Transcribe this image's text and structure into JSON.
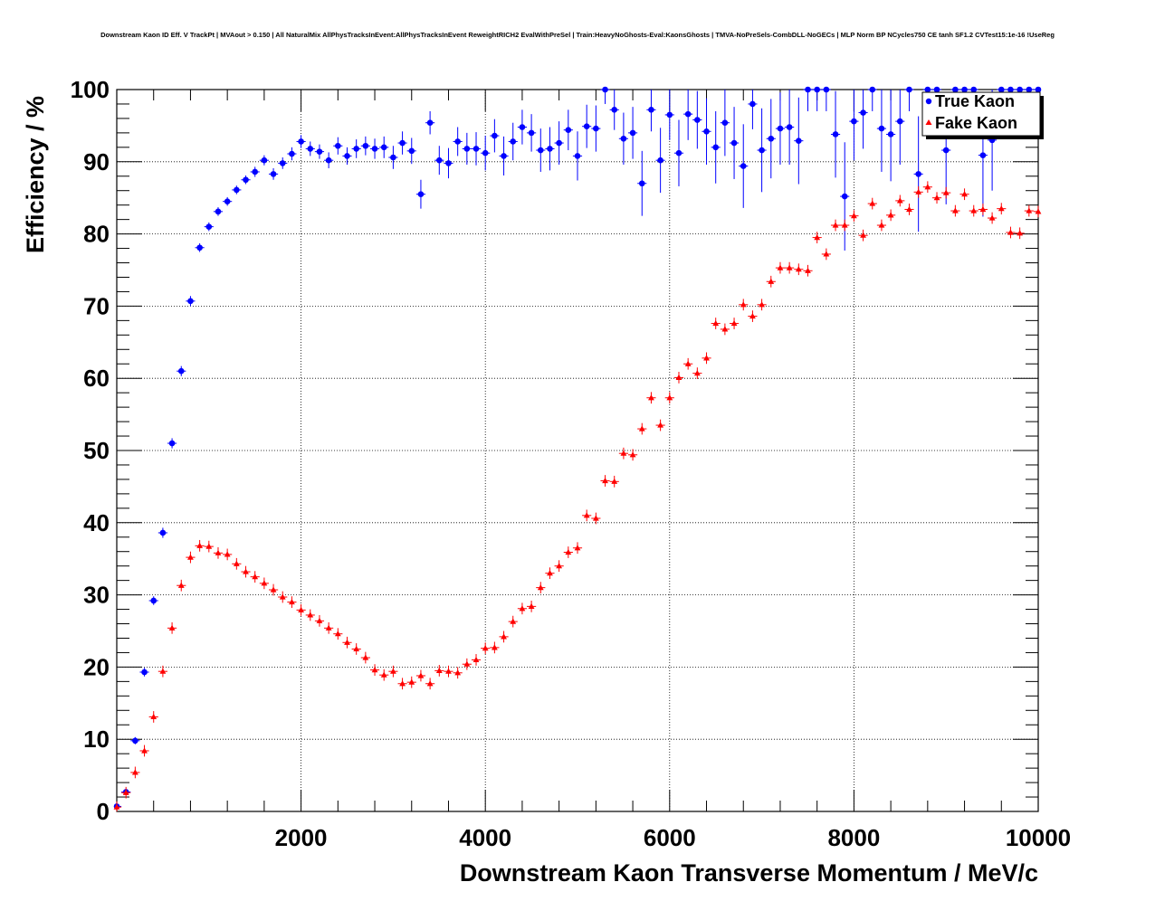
{
  "chart_data": {
    "type": "scatter",
    "title": "Downstream Kaon ID Eff. V TrackPt | MVAout > 0.150 | All NaturalMix AllPhysTracksInEvent:AllPhysTracksInEvent ReweightRICH2 EvalWithPreSel | Train:HeavyNoGhosts-Eval:KaonsGhosts | TMVA-NoPreSels-CombDLL-NoGECs | MLP Norm BP NCycles750 CE tanh SF1.2 CVTest15:1e-16 !UseReg",
    "xlabel": "Downstream Kaon Transverse Momentum / MeV/c",
    "ylabel": "Efficiency / %",
    "xlim": [
      0,
      10000
    ],
    "ylim": [
      0,
      100
    ],
    "x_tick_labels": [
      "2000",
      "4000",
      "6000",
      "8000",
      "10000"
    ],
    "y_tick_labels": [
      "0",
      "10",
      "20",
      "30",
      "40",
      "50",
      "60",
      "70",
      "80",
      "90",
      "100"
    ],
    "grid": true,
    "legend_position": "top-right",
    "series": [
      {
        "name": "True Kaon",
        "color": "#0000ff",
        "marker": "circle",
        "x": [
          0,
          100,
          200,
          300,
          400,
          500,
          600,
          700,
          800,
          900,
          1000,
          1100,
          1200,
          1300,
          1400,
          1500,
          1600,
          1700,
          1800,
          1900,
          2000,
          2100,
          2200,
          2300,
          2400,
          2500,
          2600,
          2700,
          2800,
          2900,
          3000,
          3100,
          3200,
          3300,
          3400,
          3500,
          3600,
          3700,
          3800,
          3900,
          4000,
          4100,
          4200,
          4300,
          4400,
          4500,
          4600,
          4700,
          4800,
          4900,
          5000,
          5100,
          5200,
          5300,
          5400,
          5500,
          5600,
          5700,
          5800,
          5900,
          6000,
          6100,
          6200,
          6300,
          6400,
          6500,
          6600,
          6700,
          6800,
          6900,
          7000,
          7100,
          7200,
          7300,
          7400,
          7500,
          7600,
          7700,
          7800,
          7900,
          8000,
          8100,
          8200,
          8300,
          8400,
          8500,
          8600,
          8700,
          8800,
          8900,
          9000,
          9100,
          9200,
          9300,
          9400,
          9500,
          9600,
          9700,
          9800,
          9900,
          10000
        ],
        "y": [
          0.7,
          2.7,
          9.8,
          19.3,
          29.2,
          38.6,
          51.0,
          61.0,
          70.7,
          78.1,
          81.0,
          83.1,
          84.5,
          86.1,
          87.5,
          88.6,
          90.2,
          88.3,
          89.8,
          91.1,
          92.8,
          91.8,
          91.4,
          90.2,
          92.2,
          90.8,
          91.8,
          92.2,
          91.8,
          92.0,
          90.6,
          92.6,
          91.5,
          85.5,
          95.4,
          90.2,
          89.8,
          92.8,
          91.8,
          91.8,
          91.2,
          93.6,
          90.8,
          92.8,
          94.8,
          94.0,
          91.6,
          91.8,
          92.6,
          94.4,
          90.8,
          94.9,
          94.6,
          100,
          97.2,
          93.2,
          94.0,
          87.0,
          97.2,
          90.2,
          96.5,
          91.2,
          96.6,
          95.8,
          94.2,
          92.0,
          95.4,
          92.6,
          89.4,
          98.0,
          91.6,
          93.2,
          94.6,
          94.8,
          92.9,
          100,
          100,
          100,
          93.8,
          85.2,
          95.6,
          96.8,
          100,
          94.6,
          93.8,
          95.6,
          100,
          88.3,
          100,
          100,
          91.6,
          100,
          100,
          100,
          90.9,
          93.0,
          100,
          100,
          100,
          100,
          100
        ],
        "err": [
          0.3,
          0.4,
          0.5,
          0.6,
          0.6,
          0.7,
          0.7,
          0.7,
          0.7,
          0.6,
          0.6,
          0.6,
          0.6,
          0.6,
          0.6,
          0.7,
          0.7,
          0.8,
          0.8,
          0.9,
          0.9,
          1.0,
          1.0,
          1.1,
          1.2,
          1.2,
          1.3,
          1.3,
          1.4,
          1.5,
          1.6,
          1.6,
          1.8,
          2.0,
          1.6,
          2.0,
          2.1,
          2.0,
          2.2,
          2.3,
          2.4,
          2.3,
          2.7,
          2.6,
          2.4,
          2.6,
          3.0,
          3.0,
          3.0,
          2.8,
          3.4,
          3.0,
          3.2,
          2.0,
          2.8,
          3.6,
          3.6,
          4.5,
          3.0,
          4.5,
          3.5,
          4.6,
          3.6,
          4.0,
          4.6,
          5.0,
          4.6,
          5.0,
          5.8,
          3.5,
          5.8,
          5.5,
          5.0,
          5.2,
          6.0,
          3.0,
          3.0,
          3.0,
          6.0,
          7.5,
          5.4,
          5.0,
          3.0,
          6.0,
          6.5,
          6.0,
          3.0,
          8.0,
          3.0,
          3.0,
          7.5,
          3.0,
          3.0,
          3.0,
          8.5,
          7.0,
          3.0,
          3.0,
          3.0,
          3.0,
          3.0
        ]
      },
      {
        "name": "Fake Kaon",
        "color": "#ff0000",
        "marker": "triangle",
        "x": [
          0,
          100,
          200,
          300,
          400,
          500,
          600,
          700,
          800,
          900,
          1000,
          1100,
          1200,
          1300,
          1400,
          1500,
          1600,
          1700,
          1800,
          1900,
          2000,
          2100,
          2200,
          2300,
          2400,
          2500,
          2600,
          2700,
          2800,
          2900,
          3000,
          3100,
          3200,
          3300,
          3400,
          3500,
          3600,
          3700,
          3800,
          3900,
          4000,
          4100,
          4200,
          4300,
          4400,
          4500,
          4600,
          4700,
          4800,
          4900,
          5000,
          5100,
          5200,
          5300,
          5400,
          5500,
          5600,
          5700,
          5800,
          5900,
          6000,
          6100,
          6200,
          6300,
          6400,
          6500,
          6600,
          6700,
          6800,
          6900,
          7000,
          7100,
          7200,
          7300,
          7400,
          7500,
          7600,
          7700,
          7800,
          7900,
          8000,
          8100,
          8200,
          8300,
          8400,
          8500,
          8600,
          8700,
          8800,
          8900,
          9000,
          9100,
          9200,
          9300,
          9400,
          9500,
          9600,
          9700,
          9800,
          9900,
          10000
        ],
        "y": [
          0.6,
          2.6,
          5.4,
          8.4,
          13.1,
          19.4,
          25.4,
          31.3,
          35.2,
          36.8,
          36.7,
          35.8,
          35.6,
          34.3,
          33.2,
          32.5,
          31.6,
          30.7,
          29.7,
          29.0,
          27.9,
          27.2,
          26.4,
          25.4,
          24.6,
          23.4,
          22.5,
          21.3,
          19.6,
          18.9,
          19.4,
          17.7,
          17.9,
          18.8,
          17.7,
          19.5,
          19.4,
          19.2,
          20.4,
          21.0,
          22.6,
          22.7,
          24.2,
          26.3,
          28.1,
          28.4,
          31.0,
          33.0,
          34.0,
          35.9,
          36.5,
          41.0,
          40.6,
          45.8,
          45.7,
          49.6,
          49.4,
          53.0,
          57.3,
          53.5,
          57.3,
          60.1,
          62.0,
          60.7,
          62.8,
          67.6,
          66.8,
          67.6,
          70.2,
          68.6,
          70.2,
          73.4,
          75.3,
          75.3,
          75.1,
          74.9,
          79.5,
          77.2,
          81.2,
          81.2,
          82.5,
          79.8,
          84.2,
          81.2,
          82.6,
          84.6,
          83.4,
          85.8,
          86.5,
          85.0,
          85.7,
          83.2,
          85.5,
          83.2,
          83.4,
          82.2,
          83.5,
          80.2,
          80.1,
          83.2,
          83.1
        ]
      }
    ]
  }
}
